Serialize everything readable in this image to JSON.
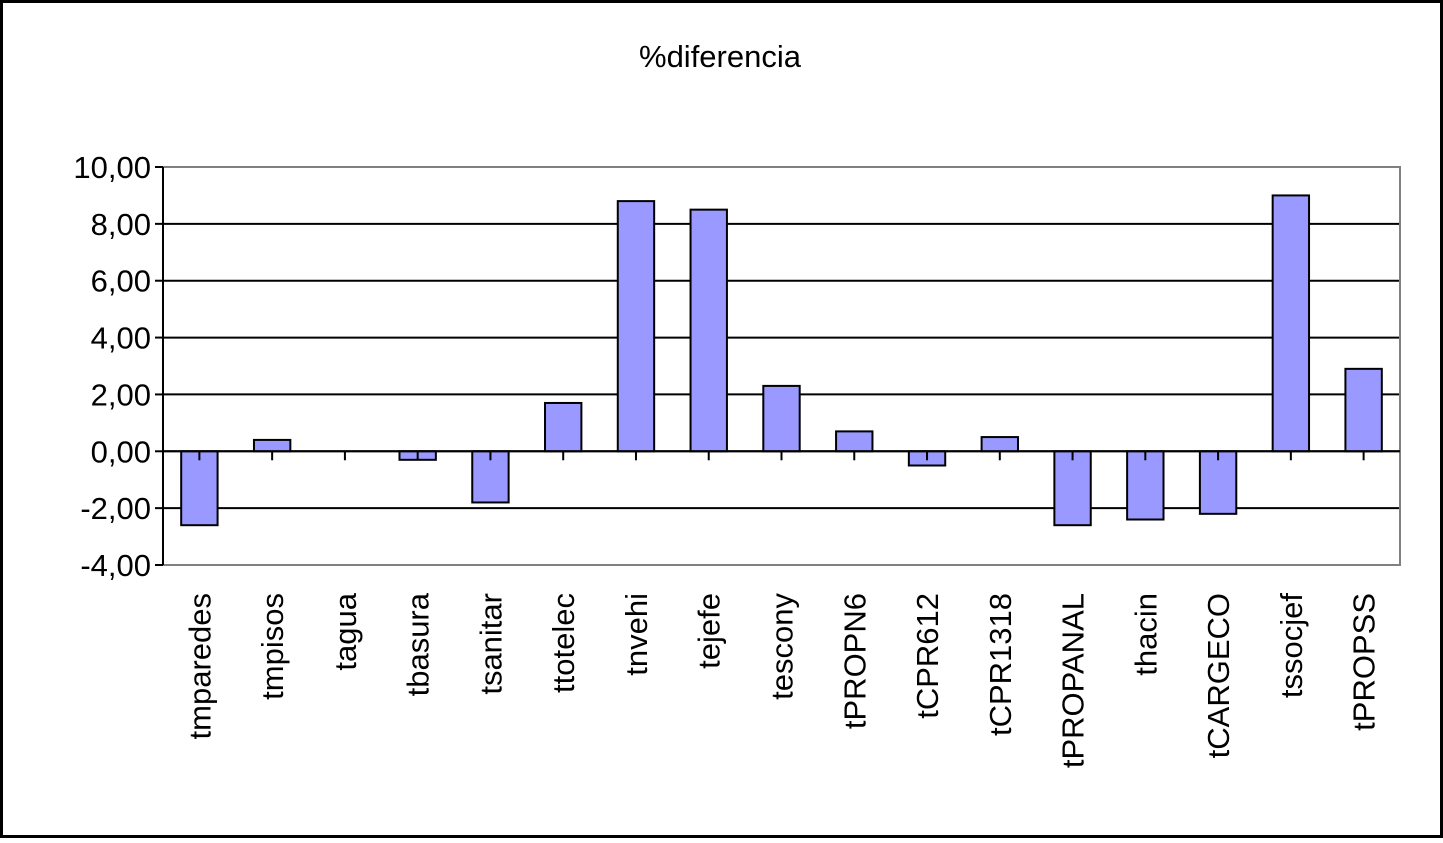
{
  "chart_data": {
    "type": "bar",
    "title": "%diferencia",
    "xlabel": "",
    "ylabel": "",
    "ylim": [
      -4,
      10
    ],
    "yticks": [
      -4,
      -2,
      0,
      2,
      4,
      6,
      8,
      10
    ],
    "ytick_labels": [
      "-4,00",
      "-2,00",
      "0,00",
      "2,00",
      "4,00",
      "6,00",
      "8,00",
      "10,00"
    ],
    "grid": true,
    "legend": "none",
    "categories": [
      "tmparedes",
      "tmpisos",
      "tagua",
      "tbasura",
      "tsanitar",
      "ttotelec",
      "tnvehi",
      "tejefe",
      "tescony",
      "tPROPN6",
      "tCPR612",
      "tCPR1318",
      "tPROPANAL",
      "thacin",
      "tCARGECO",
      "tssocjef",
      "tPROPSS"
    ],
    "values": [
      -2.6,
      0.4,
      0.0,
      -0.3,
      -1.8,
      1.7,
      8.8,
      8.5,
      2.3,
      0.7,
      -0.5,
      0.5,
      -2.6,
      -2.4,
      -2.2,
      9.0,
      2.9
    ],
    "colors": {
      "bar_fill": "#9999ff",
      "bar_stroke": "#000000",
      "plot_background": "#ffffff",
      "plot_border": "#808080",
      "gridline": "#000000"
    }
  }
}
